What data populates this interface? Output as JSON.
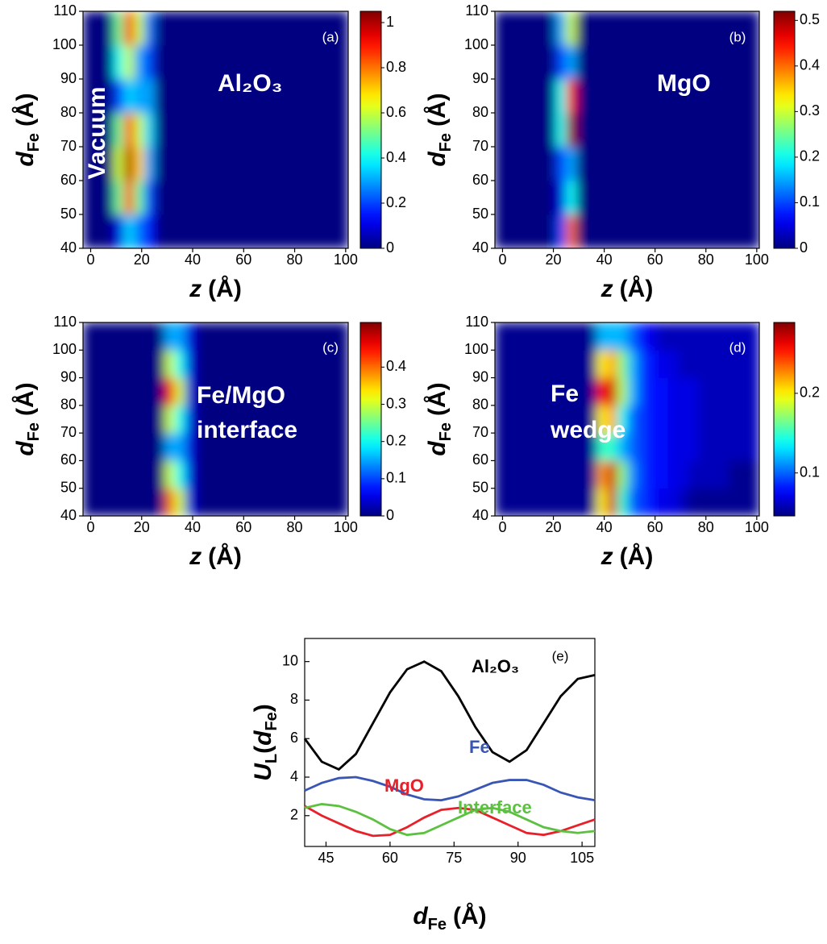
{
  "chart_data": [
    {
      "type": "heatmap",
      "colormap": "jet",
      "x_edges": [
        -3,
        1,
        5,
        9,
        13,
        17,
        21,
        25,
        29,
        33,
        37,
        41,
        45,
        49,
        53,
        57,
        61,
        65,
        69,
        73,
        77,
        81,
        85,
        89,
        93,
        97,
        101
      ],
      "y_edges": [
        40,
        50,
        60,
        70,
        80,
        90,
        100,
        110
      ],
      "values": [
        [
          0,
          0,
          0,
          0.1,
          0.35,
          0.25,
          0.15,
          0,
          0,
          0,
          0,
          0,
          0,
          0,
          0,
          0,
          0,
          0,
          0,
          0,
          0,
          0,
          0,
          0,
          0,
          0
        ],
        [
          0,
          0,
          0,
          0.5,
          0.85,
          0.5,
          0.2,
          0,
          0,
          0,
          0,
          0,
          0,
          0,
          0,
          0,
          0,
          0,
          0,
          0,
          0,
          0,
          0,
          0,
          0,
          0
        ],
        [
          0,
          0,
          0,
          0.6,
          1.0,
          0.7,
          0.3,
          0,
          0,
          0,
          0,
          0,
          0,
          0,
          0,
          0,
          0,
          0,
          0,
          0,
          0,
          0,
          0,
          0,
          0,
          0
        ],
        [
          0,
          0,
          0,
          0.5,
          0.85,
          0.6,
          0.35,
          0,
          0,
          0,
          0,
          0,
          0,
          0,
          0,
          0,
          0,
          0,
          0,
          0,
          0,
          0,
          0,
          0,
          0,
          0
        ],
        [
          0,
          0,
          0,
          0.2,
          0.35,
          0.3,
          0.3,
          0,
          0,
          0,
          0,
          0,
          0,
          0,
          0,
          0,
          0,
          0,
          0,
          0,
          0,
          0,
          0,
          0,
          0,
          0
        ],
        [
          0,
          0,
          0,
          0.4,
          0.6,
          0.3,
          0.2,
          0,
          0,
          0,
          0,
          0,
          0,
          0,
          0,
          0,
          0,
          0,
          0,
          0,
          0,
          0,
          0,
          0,
          0,
          0
        ],
        [
          0,
          0,
          0,
          0.5,
          0.9,
          0.6,
          0.25,
          0,
          0,
          0,
          0,
          0,
          0,
          0,
          0,
          0,
          0,
          0,
          0,
          0,
          0,
          0,
          0,
          0,
          0,
          0
        ]
      ],
      "xlim": [
        -3,
        101
      ],
      "ylim": [
        40,
        110
      ],
      "xticks": [
        0,
        20,
        40,
        60,
        80,
        100
      ],
      "yticks": [
        40,
        50,
        60,
        70,
        80,
        90,
        100,
        110
      ],
      "clim": [
        0,
        1.05
      ],
      "cticks": [
        0,
        0.2,
        0.4,
        0.6,
        0.8,
        1
      ],
      "xlabel": {
        "symbol": "z",
        "unit": "(Å)"
      },
      "ylabel": {
        "symbol": "d",
        "subscript": "Fe",
        "unit": "(Å)"
      },
      "annotations": [
        "(a)",
        "Vacuum",
        "Al₂O₃"
      ]
    },
    {
      "type": "heatmap",
      "colormap": "jet",
      "x_edges": [
        -3,
        1,
        5,
        9,
        13,
        17,
        21,
        25,
        29,
        33,
        37,
        41,
        45,
        49,
        53,
        57,
        61,
        65,
        69,
        73,
        77,
        81,
        85,
        89,
        93,
        97,
        101
      ],
      "y_edges": [
        40,
        50,
        60,
        70,
        80,
        90,
        100,
        110
      ],
      "values": [
        [
          0,
          0,
          0,
          0,
          0,
          0,
          0.1,
          0.4,
          0,
          0,
          0,
          0,
          0,
          0,
          0,
          0,
          0,
          0,
          0,
          0,
          0,
          0,
          0,
          0,
          0,
          0
        ],
        [
          0,
          0,
          0,
          0,
          0,
          0,
          0.05,
          0.2,
          0,
          0,
          0,
          0,
          0,
          0,
          0,
          0,
          0,
          0,
          0,
          0,
          0,
          0,
          0,
          0,
          0,
          0
        ],
        [
          0,
          0,
          0,
          0,
          0,
          0,
          0.1,
          0.15,
          0,
          0,
          0,
          0,
          0,
          0,
          0,
          0,
          0,
          0,
          0,
          0,
          0,
          0,
          0,
          0,
          0,
          0
        ],
        [
          0,
          0,
          0,
          0,
          0,
          0,
          0.2,
          0.5,
          0,
          0,
          0,
          0,
          0,
          0,
          0,
          0,
          0,
          0,
          0,
          0,
          0,
          0,
          0,
          0,
          0,
          0
        ],
        [
          0,
          0,
          0,
          0,
          0,
          0,
          0.2,
          0.45,
          0,
          0,
          0,
          0,
          0,
          0,
          0,
          0,
          0,
          0,
          0,
          0,
          0,
          0,
          0,
          0,
          0,
          0
        ],
        [
          0,
          0,
          0,
          0,
          0,
          0,
          0.1,
          0.15,
          0,
          0,
          0,
          0,
          0,
          0,
          0,
          0,
          0,
          0,
          0,
          0,
          0,
          0,
          0,
          0,
          0,
          0
        ],
        [
          0,
          0,
          0,
          0,
          0,
          0,
          0.15,
          0.3,
          0,
          0,
          0,
          0,
          0,
          0,
          0,
          0,
          0,
          0,
          0,
          0,
          0,
          0,
          0,
          0,
          0,
          0
        ]
      ],
      "xlim": [
        -3,
        101
      ],
      "ylim": [
        40,
        110
      ],
      "xticks": [
        0,
        20,
        40,
        60,
        80,
        100
      ],
      "yticks": [
        40,
        50,
        60,
        70,
        80,
        90,
        100,
        110
      ],
      "clim": [
        0,
        0.52
      ],
      "cticks": [
        0,
        0.1,
        0.2,
        0.3,
        0.4,
        0.5
      ],
      "xlabel": {
        "symbol": "z",
        "unit": "(Å)"
      },
      "ylabel": {
        "symbol": "d",
        "subscript": "Fe",
        "unit": "(Å)"
      },
      "annotations": [
        "(b)",
        "MgO"
      ]
    },
    {
      "type": "heatmap",
      "colormap": "jet",
      "x_edges": [
        -3,
        1,
        5,
        9,
        13,
        17,
        21,
        25,
        29,
        33,
        37,
        41,
        45,
        49,
        53,
        57,
        61,
        65,
        69,
        73,
        77,
        81,
        85,
        89,
        93,
        97,
        101
      ],
      "y_edges": [
        40,
        50,
        60,
        70,
        80,
        90,
        100,
        110
      ],
      "values": [
        [
          0,
          0,
          0,
          0,
          0,
          0,
          0,
          0,
          0.4,
          0.3,
          0.05,
          0,
          0,
          0,
          0,
          0,
          0,
          0,
          0,
          0,
          0,
          0,
          0,
          0,
          0,
          0
        ],
        [
          0,
          0,
          0,
          0,
          0,
          0,
          0,
          0,
          0.3,
          0.2,
          0.05,
          0,
          0,
          0,
          0,
          0,
          0,
          0,
          0,
          0,
          0,
          0,
          0,
          0,
          0,
          0
        ],
        [
          0,
          0,
          0,
          0,
          0,
          0,
          0,
          0,
          0.15,
          0.15,
          0.05,
          0,
          0,
          0,
          0,
          0,
          0,
          0,
          0,
          0,
          0,
          0,
          0,
          0,
          0,
          0
        ],
        [
          0,
          0,
          0,
          0,
          0,
          0,
          0,
          0,
          0.3,
          0.2,
          0.05,
          0,
          0,
          0,
          0,
          0,
          0,
          0,
          0,
          0,
          0,
          0,
          0,
          0,
          0,
          0
        ],
        [
          0,
          0,
          0,
          0,
          0,
          0,
          0,
          0,
          0.45,
          0.3,
          0.05,
          0,
          0,
          0,
          0,
          0,
          0,
          0,
          0,
          0,
          0,
          0,
          0,
          0,
          0,
          0
        ],
        [
          0,
          0,
          0,
          0,
          0,
          0,
          0,
          0,
          0.3,
          0.2,
          0.05,
          0,
          0,
          0,
          0,
          0,
          0,
          0,
          0,
          0,
          0,
          0,
          0,
          0,
          0,
          0
        ],
        [
          0,
          0,
          0,
          0,
          0,
          0,
          0,
          0,
          0.15,
          0.15,
          0.05,
          0,
          0,
          0,
          0,
          0,
          0,
          0,
          0,
          0,
          0,
          0,
          0,
          0,
          0,
          0
        ]
      ],
      "xlim": [
        -3,
        101
      ],
      "ylim": [
        40,
        110
      ],
      "xticks": [
        0,
        20,
        40,
        60,
        80,
        100
      ],
      "yticks": [
        40,
        50,
        60,
        70,
        80,
        90,
        100,
        110
      ],
      "clim": [
        0,
        0.52
      ],
      "cticks": [
        0,
        0.1,
        0.2,
        0.3,
        0.4
      ],
      "xlabel": {
        "symbol": "z",
        "unit": "(Å)"
      },
      "ylabel": {
        "symbol": "d",
        "subscript": "Fe",
        "unit": "(Å)"
      },
      "annotations": [
        "(c)",
        "Fe/MgO",
        "interface"
      ]
    },
    {
      "type": "heatmap",
      "colormap": "jet",
      "x_edges": [
        -3,
        1,
        5,
        9,
        13,
        17,
        21,
        25,
        29,
        33,
        37,
        41,
        45,
        49,
        53,
        57,
        61,
        65,
        69,
        73,
        77,
        81,
        85,
        89,
        93,
        97,
        101
      ],
      "y_edges": [
        40,
        50,
        60,
        70,
        80,
        90,
        100,
        110
      ],
      "values": [
        [
          0.05,
          0.05,
          0.05,
          0.05,
          0.05,
          0.05,
          0.05,
          0.05,
          0.05,
          0.05,
          0.2,
          0.27,
          0.15,
          0.1,
          0.09,
          0.08,
          0.07,
          0.07,
          0.06,
          0.05,
          0.05,
          0.05,
          0.05,
          0.05,
          0.05,
          0.05
        ],
        [
          0.05,
          0.05,
          0.05,
          0.05,
          0.05,
          0.05,
          0.05,
          0.05,
          0.05,
          0.05,
          0.22,
          0.27,
          0.17,
          0.11,
          0.09,
          0.08,
          0.08,
          0.07,
          0.07,
          0.06,
          0.06,
          0.06,
          0.06,
          0.05,
          0.05,
          0.05
        ],
        [
          0.05,
          0.05,
          0.05,
          0.05,
          0.05,
          0.05,
          0.05,
          0.05,
          0.05,
          0.05,
          0.15,
          0.15,
          0.12,
          0.1,
          0.09,
          0.08,
          0.08,
          0.07,
          0.07,
          0.07,
          0.06,
          0.06,
          0.06,
          0.06,
          0.06,
          0.06
        ],
        [
          0.05,
          0.05,
          0.05,
          0.05,
          0.05,
          0.05,
          0.05,
          0.05,
          0.05,
          0.05,
          0.2,
          0.22,
          0.14,
          0.1,
          0.09,
          0.08,
          0.08,
          0.07,
          0.07,
          0.07,
          0.06,
          0.06,
          0.06,
          0.06,
          0.06,
          0.06
        ],
        [
          0.05,
          0.05,
          0.05,
          0.05,
          0.05,
          0.05,
          0.05,
          0.05,
          0.05,
          0.05,
          0.25,
          0.27,
          0.18,
          0.12,
          0.09,
          0.08,
          0.08,
          0.07,
          0.07,
          0.07,
          0.06,
          0.06,
          0.06,
          0.06,
          0.06,
          0.06
        ],
        [
          0.05,
          0.05,
          0.05,
          0.05,
          0.05,
          0.05,
          0.05,
          0.05,
          0.05,
          0.05,
          0.2,
          0.22,
          0.17,
          0.12,
          0.09,
          0.08,
          0.07,
          0.07,
          0.06,
          0.06,
          0.06,
          0.06,
          0.06,
          0.06,
          0.06,
          0.06
        ],
        [
          0.05,
          0.05,
          0.05,
          0.05,
          0.05,
          0.05,
          0.05,
          0.05,
          0.05,
          0.05,
          0.12,
          0.12,
          0.12,
          0.1,
          0.08,
          0.07,
          0.06,
          0.06,
          0.06,
          0.06,
          0.06,
          0.06,
          0.06,
          0.06,
          0.06,
          0.06
        ]
      ],
      "xlim": [
        -3,
        101
      ],
      "ylim": [
        40,
        110
      ],
      "xticks": [
        0,
        20,
        40,
        60,
        80,
        100
      ],
      "yticks": [
        40,
        50,
        60,
        70,
        80,
        90,
        100,
        110
      ],
      "clim": [
        0.046,
        0.289
      ],
      "cticks": [
        0.1,
        0.2
      ],
      "xlabel": {
        "symbol": "z",
        "unit": "(Å)"
      },
      "ylabel": {
        "symbol": "d",
        "subscript": "Fe",
        "unit": "(Å)"
      },
      "annotations": [
        "(d)",
        "Fe",
        "wedge"
      ]
    },
    {
      "type": "line",
      "x": [
        40,
        44,
        48,
        52,
        56,
        60,
        64,
        68,
        72,
        76,
        80,
        84,
        88,
        92,
        96,
        100,
        104,
        108
      ],
      "series": [
        {
          "name": "Al₂O₃",
          "color": "#000000",
          "values": [
            6.0,
            4.8,
            4.4,
            5.2,
            6.8,
            8.4,
            9.6,
            10.0,
            9.5,
            8.2,
            6.6,
            5.3,
            4.8,
            5.4,
            6.8,
            8.2,
            9.1,
            9.3
          ]
        },
        {
          "name": "Fe",
          "color": "#3a56b4",
          "values": [
            3.3,
            3.7,
            3.95,
            4.0,
            3.8,
            3.5,
            3.1,
            2.85,
            2.8,
            3.0,
            3.35,
            3.7,
            3.85,
            3.85,
            3.6,
            3.2,
            2.95,
            2.8
          ]
        },
        {
          "name": "MgO",
          "color": "#e8202a",
          "values": [
            2.5,
            2.0,
            1.6,
            1.2,
            0.95,
            1.0,
            1.4,
            1.9,
            2.3,
            2.4,
            2.3,
            1.9,
            1.5,
            1.1,
            1.0,
            1.2,
            1.5,
            1.8
          ]
        },
        {
          "name": "Interface",
          "color": "#5cc040",
          "values": [
            2.4,
            2.6,
            2.5,
            2.2,
            1.8,
            1.3,
            1.0,
            1.1,
            1.5,
            1.9,
            2.3,
            2.4,
            2.2,
            1.8,
            1.4,
            1.2,
            1.1,
            1.2
          ]
        }
      ],
      "xlim": [
        40,
        108
      ],
      "ylim": [
        0.4,
        11.2
      ],
      "xticks": [
        45,
        60,
        75,
        90,
        105
      ],
      "yticks": [
        2,
        4,
        6,
        8,
        10
      ],
      "xlabel": {
        "symbol": "d",
        "subscript": "Fe",
        "unit": "(Å)"
      },
      "ylabel": [
        "U",
        "L",
        "(",
        "d",
        "Fe",
        ")"
      ],
      "annotations": [
        "(e)"
      ]
    }
  ]
}
